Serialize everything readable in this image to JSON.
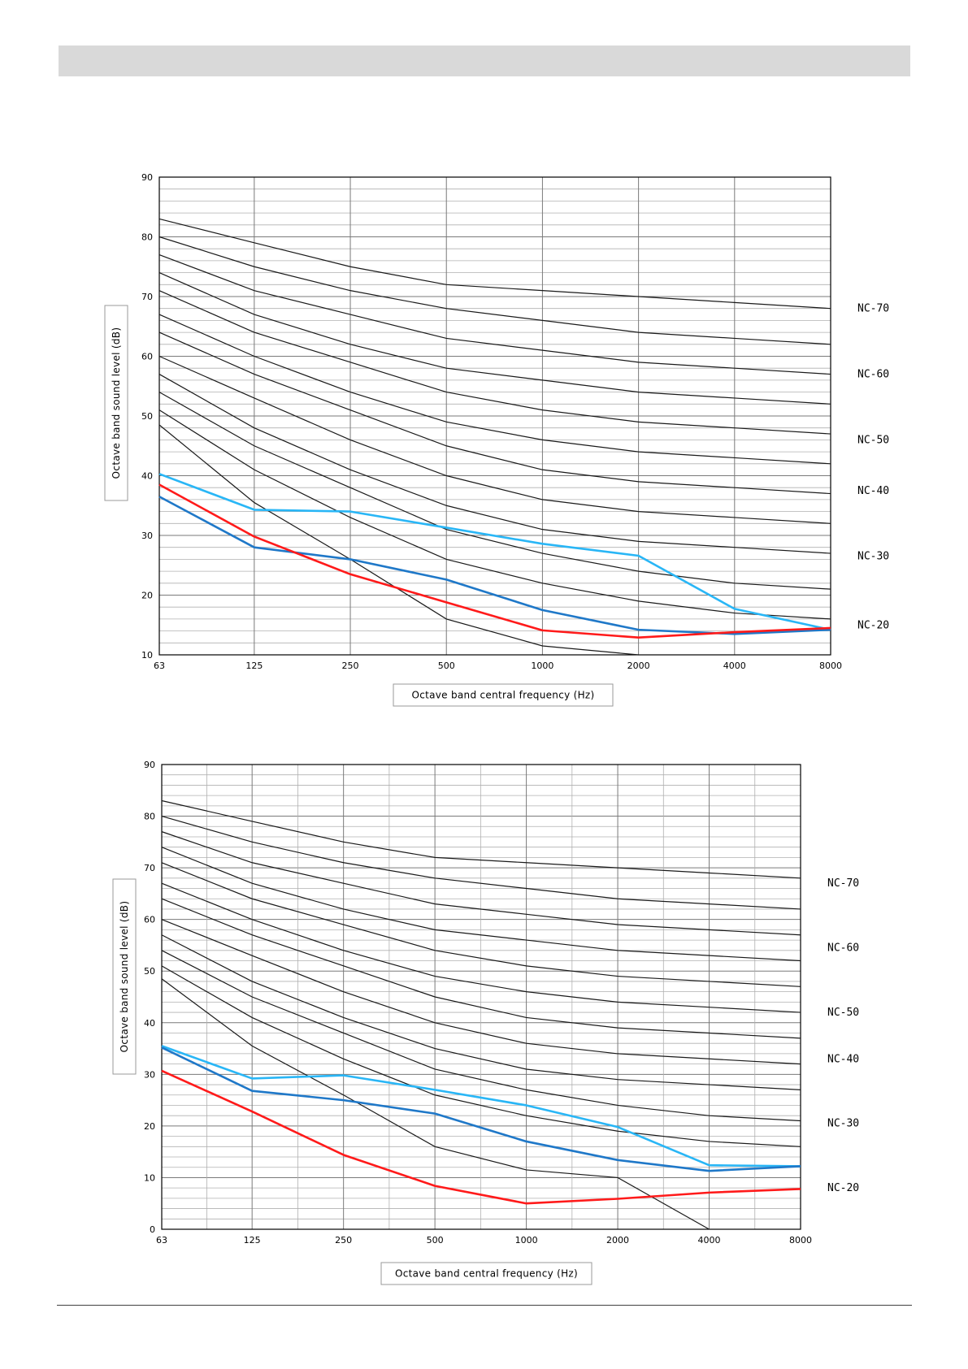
{
  "colors": {
    "red": "#ff1a1a",
    "darkblue": "#1f78c8",
    "lightblue": "#29b6f6",
    "curve": "#1a1a1a",
    "grid": "#9a9a9a"
  },
  "chart_data": [
    {
      "type": "line",
      "x_scale": "log",
      "categories": [
        "63",
        "125",
        "250",
        "500",
        "1000",
        "2000",
        "4000",
        "8000"
      ],
      "x": [
        63,
        125,
        250,
        500,
        1000,
        2000,
        4000,
        8000
      ],
      "xlabel": "Octave band central frequency (Hz)",
      "ylabel": "Octave band sound level (dB)",
      "ylim": [
        10,
        90
      ],
      "yticks": [
        10,
        20,
        30,
        40,
        50,
        60,
        70,
        80,
        90
      ],
      "grid": true,
      "minor_x_grid": false,
      "nc_labels": [
        {
          "text": "NC-70",
          "y": 68
        },
        {
          "text": "NC-60",
          "y": 57
        },
        {
          "text": "NC-50",
          "y": 46
        },
        {
          "text": "NC-40",
          "y": 37.5
        },
        {
          "text": "NC-30",
          "y": 26.5
        },
        {
          "text": "NC-20",
          "y": 15
        }
      ],
      "nc_curves": [
        [
          83,
          79,
          75,
          72,
          71,
          70,
          69,
          68
        ],
        [
          80,
          75,
          71,
          68,
          66,
          64,
          63,
          62
        ],
        [
          77,
          71,
          67,
          63,
          61,
          59,
          58,
          57
        ],
        [
          74,
          67,
          62,
          58,
          56,
          54,
          53,
          52
        ],
        [
          71,
          64,
          59,
          54,
          51,
          49,
          48,
          47
        ],
        [
          67,
          60,
          54,
          49,
          46,
          44,
          43,
          42
        ],
        [
          64,
          57,
          51,
          45,
          41,
          39,
          38,
          37
        ],
        [
          60,
          53,
          46,
          40,
          36,
          34,
          33,
          32
        ],
        [
          57,
          48,
          41,
          35,
          31,
          29,
          28,
          27
        ],
        [
          54,
          45,
          38,
          31,
          27,
          24,
          22,
          21
        ],
        [
          51,
          41,
          33,
          26,
          22,
          19,
          17,
          16
        ],
        [
          48.5,
          35.5,
          26,
          16,
          11.5,
          10
        ]
      ],
      "series": [
        {
          "color": "lightblue",
          "values": [
            40.3,
            34.3,
            34,
            31.3,
            28.6,
            26.6,
            17.7,
            14.2
          ]
        },
        {
          "color": "darkblue",
          "values": [
            36.5,
            28,
            26,
            22.6,
            17.5,
            14.2,
            13.5,
            14.2
          ]
        },
        {
          "color": "red",
          "values": [
            38.5,
            29.8,
            23.5,
            18.8,
            14.1,
            12.9,
            13.8,
            14.5
          ]
        }
      ]
    },
    {
      "type": "line",
      "x_scale": "log",
      "categories": [
        "63",
        "125",
        "250",
        "500",
        "1000",
        "2000",
        "4000",
        "8000"
      ],
      "x": [
        63,
        125,
        250,
        500,
        1000,
        2000,
        4000,
        8000
      ],
      "xlabel": "Octave band central frequency (Hz)",
      "ylabel": "Octave band sound level (dB)",
      "ylim": [
        0,
        90
      ],
      "yticks": [
        0,
        10,
        20,
        30,
        40,
        50,
        60,
        70,
        80,
        90
      ],
      "grid": true,
      "minor_x_grid": true,
      "nc_labels": [
        {
          "text": "NC-70",
          "y": 67
        },
        {
          "text": "NC-60",
          "y": 54.5
        },
        {
          "text": "NC-50",
          "y": 42
        },
        {
          "text": "NC-40",
          "y": 33
        },
        {
          "text": "NC-30",
          "y": 20.5
        },
        {
          "text": "NC-20",
          "y": 8
        }
      ],
      "nc_curves": [
        [
          83,
          79,
          75,
          72,
          71,
          70,
          69,
          68
        ],
        [
          80,
          75,
          71,
          68,
          66,
          64,
          63,
          62
        ],
        [
          77,
          71,
          67,
          63,
          61,
          59,
          58,
          57
        ],
        [
          74,
          67,
          62,
          58,
          56,
          54,
          53,
          52
        ],
        [
          71,
          64,
          59,
          54,
          51,
          49,
          48,
          47
        ],
        [
          67,
          60,
          54,
          49,
          46,
          44,
          43,
          42
        ],
        [
          64,
          57,
          51,
          45,
          41,
          39,
          38,
          37
        ],
        [
          60,
          53,
          46,
          40,
          36,
          34,
          33,
          32
        ],
        [
          57,
          48,
          41,
          35,
          31,
          29,
          28,
          27
        ],
        [
          54,
          45,
          38,
          31,
          27,
          24,
          22,
          21
        ],
        [
          51,
          41,
          33,
          26,
          22,
          19,
          17,
          16
        ],
        [
          48.5,
          35.5,
          26,
          16,
          11.5,
          10,
          0
        ]
      ],
      "series": [
        {
          "color": "lightblue",
          "values": [
            35.5,
            29.2,
            29.8,
            27,
            24,
            19.8,
            12.4,
            12.2
          ]
        },
        {
          "color": "darkblue",
          "values": [
            35.2,
            26.8,
            25,
            22.4,
            17,
            13.4,
            11.3,
            12.2
          ]
        },
        {
          "color": "red",
          "values": [
            30.7,
            22.8,
            14.4,
            8.4,
            5,
            5.9,
            7.1,
            7.8
          ]
        }
      ]
    }
  ]
}
